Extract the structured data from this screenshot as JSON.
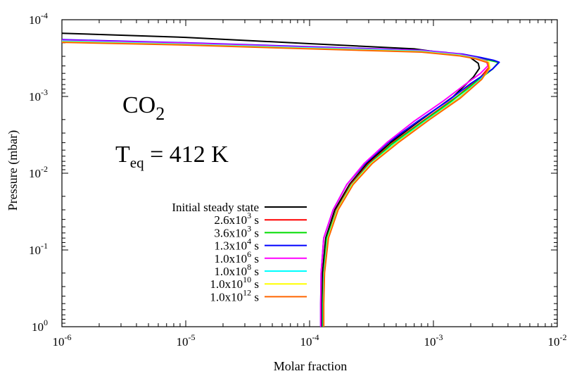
{
  "chart_data": {
    "type": "line",
    "title": "",
    "xlabel": "Molar fraction",
    "ylabel": "Pressure (mbar)",
    "xscale": "log",
    "yscale": "log",
    "xlim": [
      1e-06,
      0.01
    ],
    "ylim": [
      1,
      0.0001
    ],
    "y_inverted": true,
    "grid": false,
    "legend_position": "lower-left",
    "x_ticks": [
      {
        "value": 1e-06,
        "base": "10",
        "exp": "-6"
      },
      {
        "value": 1e-05,
        "base": "10",
        "exp": "-5"
      },
      {
        "value": 0.0001,
        "base": "10",
        "exp": "-4"
      },
      {
        "value": 0.001,
        "base": "10",
        "exp": "-3"
      },
      {
        "value": 0.01,
        "base": "10",
        "exp": "-2"
      }
    ],
    "y_ticks": [
      {
        "value": 0.0001,
        "base": "10",
        "exp": "-4"
      },
      {
        "value": 0.001,
        "base": "10",
        "exp": "-3"
      },
      {
        "value": 0.01,
        "base": "10",
        "exp": "-2"
      },
      {
        "value": 0.1,
        "base": "10",
        "exp": "-1"
      },
      {
        "value": 1,
        "base": "10",
        "exp": "0"
      }
    ],
    "annotations": {
      "species": {
        "base": "CO",
        "sub": "2"
      },
      "temperature": {
        "base": "T",
        "sub": "eq",
        "rest": " = 412 K"
      }
    },
    "series": [
      {
        "name": "Initial steady state",
        "legend": {
          "pre": "Initial steady state",
          "exp": "",
          "post": ""
        },
        "color": "#000000",
        "points": [
          [
            1e-06,
            0.00015
          ],
          [
            1e-05,
            0.00017
          ],
          [
            0.0001,
            0.000205
          ],
          [
            0.0007,
            0.00024
          ],
          [
            0.0014,
            0.00028
          ],
          [
            0.00195,
            0.000305
          ],
          [
            0.0023,
            0.00037
          ],
          [
            0.00235,
            0.00043
          ],
          [
            0.0021,
            0.00056
          ],
          [
            0.00145,
            0.001
          ],
          [
            0.0008,
            0.002
          ],
          [
            0.00045,
            0.004
          ],
          [
            0.00029,
            0.0075
          ],
          [
            0.00021,
            0.014
          ],
          [
            0.00016,
            0.03
          ],
          [
            0.000135,
            0.07
          ],
          [
            0.000127,
            0.2
          ],
          [
            0.000125,
            0.5
          ],
          [
            0.000125,
            1.0
          ]
        ]
      },
      {
        "name": "2.6x10^3 s",
        "legend": {
          "pre": "2.6x10",
          "exp": "3",
          "post": " s"
        },
        "color": "#ff0000",
        "points": [
          [
            1e-06,
            0.000192
          ],
          [
            1e-05,
            0.00021
          ],
          [
            0.0001,
            0.000235
          ],
          [
            0.0008,
            0.00026
          ],
          [
            0.0016,
            0.00029
          ],
          [
            0.00215,
            0.00032
          ],
          [
            0.0027,
            0.00036
          ],
          [
            0.0028,
            0.00042
          ],
          [
            0.0024,
            0.00056
          ],
          [
            0.00155,
            0.001
          ],
          [
            0.00085,
            0.002
          ],
          [
            0.00047,
            0.004
          ],
          [
            0.0003,
            0.0075
          ],
          [
            0.000215,
            0.014
          ],
          [
            0.000165,
            0.03
          ],
          [
            0.000138,
            0.07
          ],
          [
            0.00013,
            0.2
          ],
          [
            0.000128,
            0.5
          ],
          [
            0.000128,
            1.0
          ]
        ]
      },
      {
        "name": "3.6x10^3 s",
        "legend": {
          "pre": "3.6x10",
          "exp": "3",
          "post": " s"
        },
        "color": "#00dd00",
        "points": [
          [
            1e-06,
            0.00019
          ],
          [
            1e-05,
            0.000208
          ],
          [
            0.0001,
            0.000233
          ],
          [
            0.0008,
            0.000258
          ],
          [
            0.0017,
            0.000288
          ],
          [
            0.0023,
            0.000315
          ],
          [
            0.003,
            0.000345
          ],
          [
            0.00335,
            0.00036
          ],
          [
            0.003,
            0.00044
          ],
          [
            0.0022,
            0.00065
          ],
          [
            0.0014,
            0.00115
          ],
          [
            0.0008,
            0.0022
          ],
          [
            0.00046,
            0.0042
          ],
          [
            0.0003,
            0.0078
          ],
          [
            0.000215,
            0.0145
          ],
          [
            0.000165,
            0.031
          ],
          [
            0.000138,
            0.07
          ],
          [
            0.00013,
            0.2
          ],
          [
            0.000128,
            0.5
          ],
          [
            0.000128,
            1.0
          ]
        ]
      },
      {
        "name": "1.3x10^4 s",
        "legend": {
          "pre": "1.3x10",
          "exp": "4",
          "post": " s"
        },
        "color": "#0000ff",
        "points": [
          [
            1e-06,
            0.000182
          ],
          [
            1e-05,
            0.0002
          ],
          [
            0.0001,
            0.000225
          ],
          [
            0.0008,
            0.00025
          ],
          [
            0.0017,
            0.00028
          ],
          [
            0.0024,
            0.00031
          ],
          [
            0.0031,
            0.00034
          ],
          [
            0.0034,
            0.000358
          ],
          [
            0.003,
            0.00044
          ],
          [
            0.002,
            0.00068
          ],
          [
            0.0013,
            0.00115
          ],
          [
            0.00075,
            0.0021
          ],
          [
            0.00043,
            0.004
          ],
          [
            0.00028,
            0.0075
          ],
          [
            0.0002,
            0.014
          ],
          [
            0.000155,
            0.03
          ],
          [
            0.00013,
            0.07
          ],
          [
            0.000124,
            0.2
          ],
          [
            0.000123,
            0.5
          ],
          [
            0.000123,
            1.0
          ]
        ]
      },
      {
        "name": "1.0x10^6 s",
        "legend": {
          "pre": "1.0x10",
          "exp": "6",
          "post": " s"
        },
        "color": "#ff00ff",
        "points": [
          [
            1e-06,
            0.000185
          ],
          [
            1e-05,
            0.000202
          ],
          [
            0.0001,
            0.000228
          ],
          [
            0.0008,
            0.000252
          ],
          [
            0.0016,
            0.00028
          ],
          [
            0.0022,
            0.00031
          ],
          [
            0.0027,
            0.000345
          ],
          [
            0.00275,
            0.0004
          ],
          [
            0.0024,
            0.0005
          ],
          [
            0.0018,
            0.0007
          ],
          [
            0.0012,
            0.00115
          ],
          [
            0.0007,
            0.0021
          ],
          [
            0.00042,
            0.004
          ],
          [
            0.000275,
            0.0075
          ],
          [
            0.0002,
            0.014
          ],
          [
            0.000155,
            0.03
          ],
          [
            0.00013,
            0.07
          ],
          [
            0.000124,
            0.2
          ],
          [
            0.000123,
            0.5
          ],
          [
            0.000123,
            1.0
          ]
        ]
      },
      {
        "name": "1.0x10^8 s",
        "legend": {
          "pre": "1.0x10",
          "exp": "8",
          "post": " s"
        },
        "color": "#00ffff",
        "points": [
          [
            1e-06,
            0.00019
          ],
          [
            1e-05,
            0.000208
          ],
          [
            0.0001,
            0.000233
          ],
          [
            0.0008,
            0.000257
          ],
          [
            0.0016,
            0.000287
          ],
          [
            0.0022,
            0.000315
          ],
          [
            0.00275,
            0.000355
          ],
          [
            0.00285,
            0.00043
          ],
          [
            0.0024,
            0.0006
          ],
          [
            0.0016,
            0.00105
          ],
          [
            0.0009,
            0.002
          ],
          [
            0.0005,
            0.004
          ],
          [
            0.00031,
            0.0075
          ],
          [
            0.00022,
            0.014
          ],
          [
            0.000167,
            0.03
          ],
          [
            0.00014,
            0.07
          ],
          [
            0.000131,
            0.2
          ],
          [
            0.000129,
            0.5
          ],
          [
            0.000129,
            1.0
          ]
        ]
      },
      {
        "name": "1.0x10^10 s",
        "legend": {
          "pre": "1.0x10",
          "exp": "10",
          "post": " s"
        },
        "color": "#ffff00",
        "points": [
          [
            1e-06,
            0.000195
          ],
          [
            1e-05,
            0.000212
          ],
          [
            0.0001,
            0.000238
          ],
          [
            0.0008,
            0.000262
          ],
          [
            0.0016,
            0.000292
          ],
          [
            0.0022,
            0.00032
          ],
          [
            0.0028,
            0.00036
          ],
          [
            0.00285,
            0.00043
          ],
          [
            0.00245,
            0.0006
          ],
          [
            0.00162,
            0.00105
          ],
          [
            0.00092,
            0.002
          ],
          [
            0.00051,
            0.004
          ],
          [
            0.000315,
            0.0075
          ],
          [
            0.000222,
            0.014
          ],
          [
            0.000168,
            0.03
          ],
          [
            0.000141,
            0.07
          ],
          [
            0.000132,
            0.2
          ],
          [
            0.00013,
            0.5
          ],
          [
            0.00013,
            1.0
          ]
        ]
      },
      {
        "name": "1.0x10^12 s",
        "legend": {
          "pre": "1.0x10",
          "exp": "12",
          "post": " s"
        },
        "color": "#ff6600",
        "points": [
          [
            1e-06,
            0.000197
          ],
          [
            1e-05,
            0.000214
          ],
          [
            0.0001,
            0.00024
          ],
          [
            0.0008,
            0.000264
          ],
          [
            0.0016,
            0.000295
          ],
          [
            0.0022,
            0.000322
          ],
          [
            0.00275,
            0.000362
          ],
          [
            0.0028,
            0.00043
          ],
          [
            0.00245,
            0.0006
          ],
          [
            0.00165,
            0.00105
          ],
          [
            0.00093,
            0.002
          ],
          [
            0.00052,
            0.004
          ],
          [
            0.00032,
            0.0075
          ],
          [
            0.000225,
            0.014
          ],
          [
            0.00017,
            0.03
          ],
          [
            0.000142,
            0.07
          ],
          [
            0.000132,
            0.2
          ],
          [
            0.00013,
            0.5
          ],
          [
            0.00013,
            1.0
          ]
        ]
      }
    ]
  }
}
